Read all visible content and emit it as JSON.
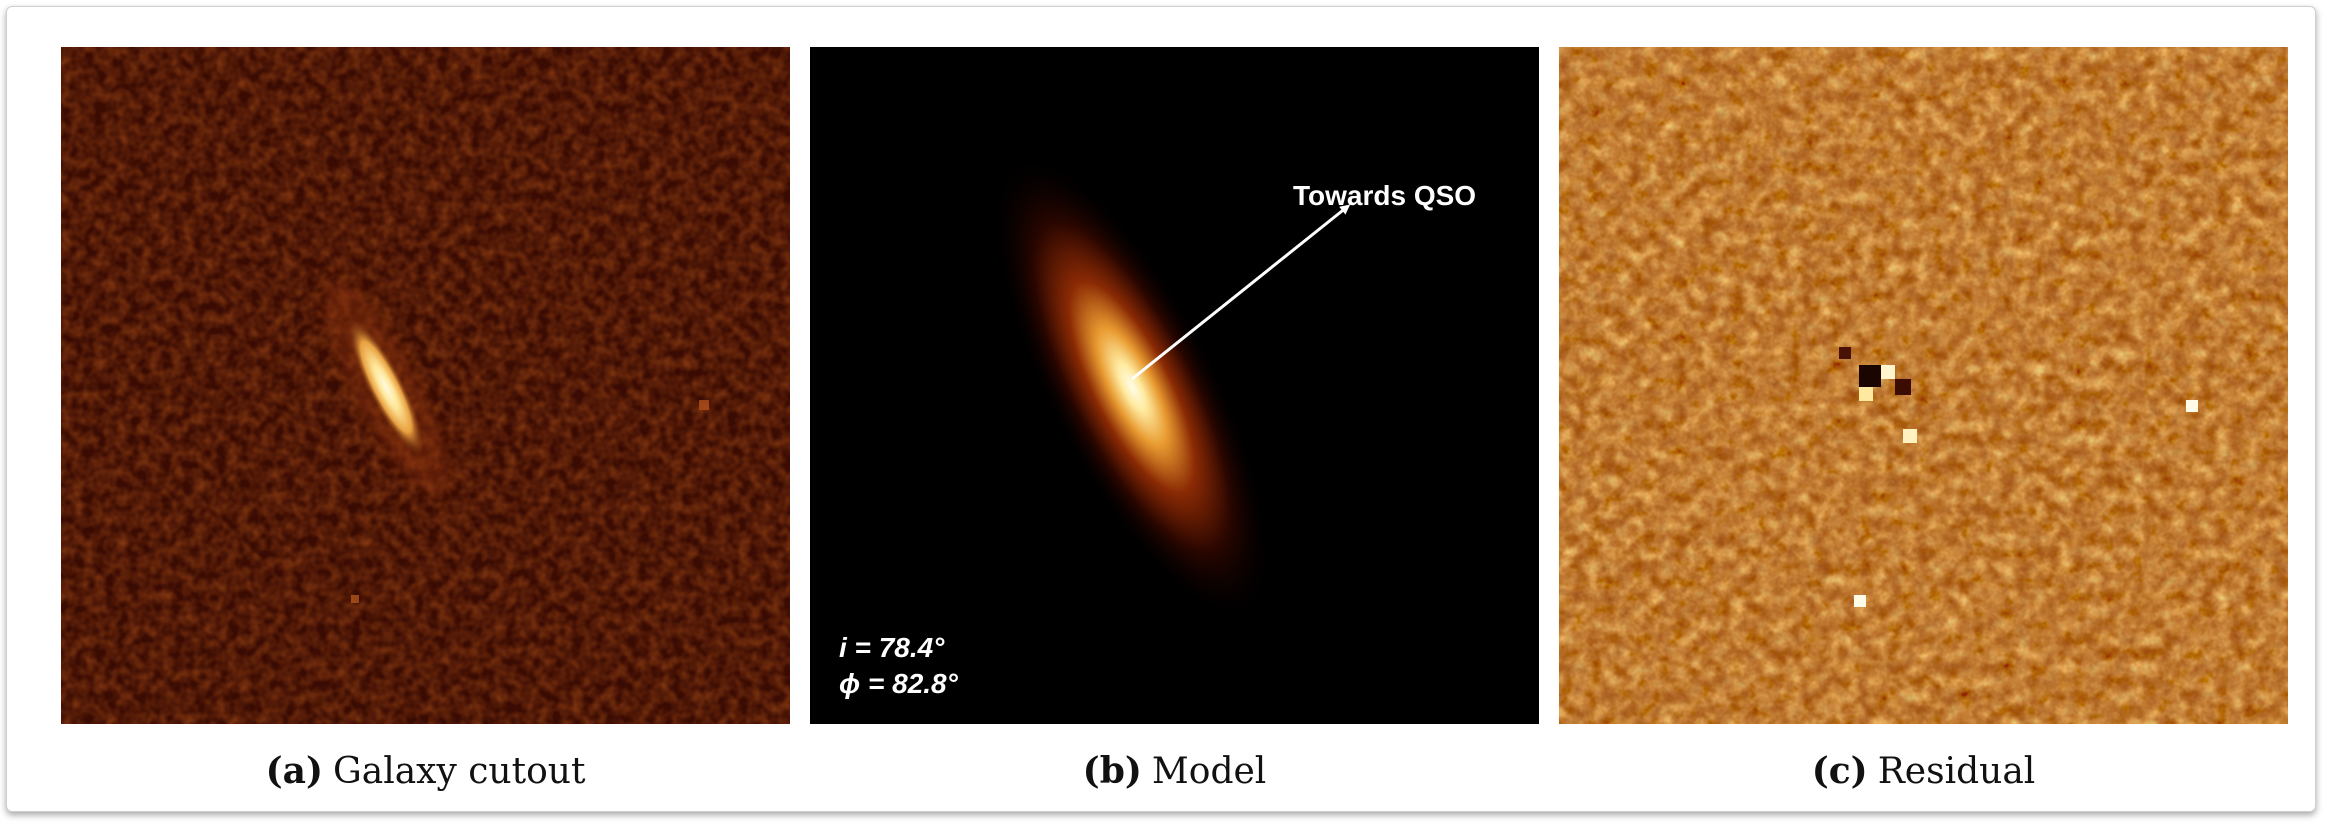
{
  "panels": [
    {
      "name": "galaxy-cutout",
      "caption_tag": "(a)",
      "caption_text": "Galaxy cutout",
      "colormap": "afmhot",
      "background_color": "#3a0b02"
    },
    {
      "name": "model",
      "caption_tag": "(b)",
      "caption_text": "Model",
      "arrow_label": "Towards QSO",
      "inclination": "i = 78.4°",
      "azimuth": "ϕ = 82.8°",
      "background_color": "#000000"
    },
    {
      "name": "residual",
      "caption_tag": "(c)",
      "caption_text": "Residual",
      "colormap": "afmhot",
      "background_color": "#9a4b12"
    }
  ]
}
